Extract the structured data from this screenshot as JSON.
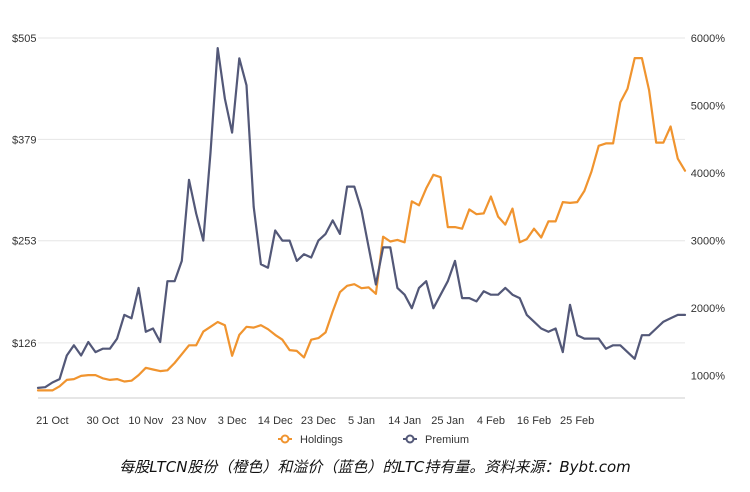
{
  "caption": "每股LTCN股份（橙色）和溢价（蓝色）的LTC持有量。资料来源：Bybt.com",
  "chart_data": {
    "type": "line",
    "x_tick_labels": [
      "21 Oct",
      "30 Oct",
      "10 Nov",
      "23 Nov",
      "3 Dec",
      "14 Dec",
      "23 Dec",
      "5 Jan",
      "14 Jan",
      "25 Jan",
      "4 Feb",
      "16 Feb",
      "25 Feb"
    ],
    "x_tick_index": [
      2,
      9,
      15,
      21,
      27,
      33,
      39,
      45,
      51,
      57,
      63,
      69,
      75
    ],
    "y_left": {
      "ticks": [
        "$505",
        "$379",
        "$253",
        "$126"
      ],
      "tick_values": [
        505,
        379,
        253,
        126
      ],
      "range": [
        60,
        505
      ]
    },
    "y_right": {
      "ticks": [
        "6000%",
        "5000%",
        "4000%",
        "3000%",
        "2000%",
        "1000%"
      ],
      "tick_values": [
        6000,
        5000,
        4000,
        3000,
        2000,
        1000
      ],
      "range": [
        700,
        6000
      ]
    },
    "grid": true,
    "legend_position": "bottom",
    "series": [
      {
        "name": "Holdings",
        "axis": "left",
        "color": "#f0942f",
        "values": [
          67,
          67,
          67,
          72,
          80,
          81,
          85,
          86,
          86,
          82,
          80,
          81,
          78,
          79,
          86,
          95,
          93,
          91,
          92,
          101,
          112,
          123,
          123,
          140,
          146,
          152,
          148,
          110,
          136,
          146,
          145,
          148,
          143,
          136,
          130,
          117,
          116,
          108,
          130,
          132,
          139,
          165,
          189,
          197,
          199,
          194,
          195,
          187,
          258,
          252,
          254,
          251,
          302,
          297,
          318,
          335,
          332,
          270,
          270,
          268,
          292,
          286,
          287,
          308,
          283,
          273,
          293,
          251,
          255,
          268,
          257,
          277,
          277,
          301,
          300,
          301,
          315,
          339,
          371,
          374,
          374,
          425,
          442,
          480,
          480,
          440,
          375,
          375,
          395,
          355,
          340
        ]
      },
      {
        "name": "Premium",
        "axis": "right",
        "color": "#535878",
        "values": [
          820,
          830,
          900,
          950,
          1300,
          1450,
          1300,
          1500,
          1350,
          1400,
          1400,
          1550,
          1900,
          1850,
          2300,
          1650,
          1700,
          1500,
          2400,
          2400,
          2700,
          3900,
          3400,
          3000,
          4300,
          5850,
          5100,
          4600,
          5700,
          5300,
          3500,
          2650,
          2600,
          3150,
          3000,
          3000,
          2700,
          2800,
          2750,
          3000,
          3100,
          3300,
          3100,
          3800,
          3800,
          3450,
          2900,
          2350,
          2900,
          2900,
          2300,
          2200,
          2000,
          2300,
          2400,
          2000,
          2200,
          2400,
          2700,
          2150,
          2150,
          2100,
          2250,
          2200,
          2200,
          2300,
          2200,
          2150,
          1900,
          1800,
          1700,
          1650,
          1700,
          1350,
          2050,
          1600,
          1550,
          1550,
          1550,
          1400,
          1450,
          1450,
          1350,
          1250,
          1600,
          1600,
          1700,
          1800,
          1850,
          1900,
          1900
        ]
      }
    ]
  }
}
